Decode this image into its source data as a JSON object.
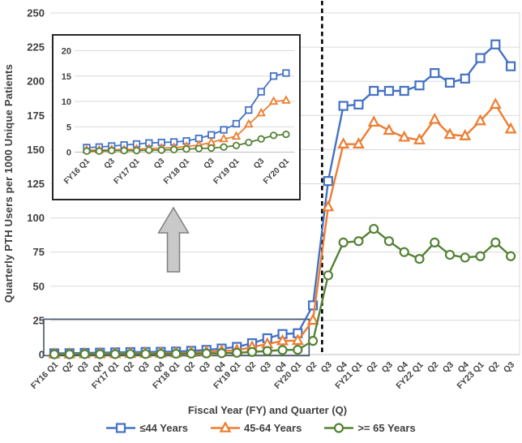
{
  "figure": {
    "background": "#FFFFFF",
    "description": "Line chart of quarterly PTH (telehealth) users per 1000 unique patients by age group, FY16 Q1 to FY23 Q3, with inset magnifying the pre-FY20 period, a vertical dashed line between FY20 Q2 and FY20 Q3, a navy box around the low pre-pandemic region and a grey arrow pointing to the inset"
  },
  "colors": {
    "series_le44": "#4472C4",
    "series_45_64": "#ED7D31",
    "series_ge65": "#548235",
    "gridline": "#D9D9D9",
    "axis_line": "#BFBFBF",
    "axis_text": "#3F3F3F",
    "dashed_line": "#000000",
    "zoom_box_border": "#44546A",
    "arrow_fill": "#C9C9C9",
    "arrow_border": "#7F7F7F"
  },
  "chart_data": [
    {
      "id": "main",
      "type": "line",
      "xlabel": "Fiscal Year (FY) and Quarter (Q)",
      "ylabel": "Quarterly PTH Users per 1000 Unique Patients",
      "ylim": [
        0,
        250
      ],
      "yticks": [
        0,
        25,
        50,
        75,
        100,
        125,
        150,
        175,
        200,
        225,
        250
      ],
      "grid": true,
      "legend_position": "bottom",
      "categories": [
        "FY16 Q1",
        "Q2",
        "Q3",
        "Q4",
        "FY17 Q1",
        "Q2",
        "Q3",
        "Q4",
        "FY18 Q1",
        "Q2",
        "Q3",
        "Q4",
        "FY19 Q1",
        "Q2",
        "Q3",
        "Q4",
        "FY20 Q1",
        "Q2",
        "Q3",
        "Q4",
        "FY21 Q1",
        "Q2",
        "Q3",
        "Q4",
        "FY22 Q1",
        "Q2",
        "Q3",
        "Q4",
        "FY23 Q1",
        "Q2",
        "Q3"
      ],
      "series": [
        {
          "name": "≤44 Years",
          "marker": "square",
          "color_key": "series_le44",
          "values": [
            0.9,
            1.0,
            1.2,
            1.4,
            1.6,
            1.8,
            1.9,
            2.0,
            2.2,
            2.7,
            3.4,
            4.4,
            5.6,
            8.3,
            11.9,
            15.0,
            15.6,
            36,
            127,
            182,
            183,
            193,
            193,
            193,
            197,
            206,
            199,
            202,
            217,
            227,
            211
          ]
        },
        {
          "name": "45-64 Years",
          "marker": "triangle",
          "color_key": "series_45_64",
          "values": [
            0.4,
            0.4,
            0.5,
            0.5,
            0.6,
            0.7,
            0.8,
            0.9,
            1.1,
            1.4,
            1.9,
            2.6,
            3.1,
            5.5,
            7.7,
            10.0,
            10.2,
            25,
            108,
            154,
            154,
            170,
            164,
            159,
            157,
            172,
            161,
            160,
            171,
            183,
            165
          ]
        },
        {
          "name": ">= 65 Years",
          "marker": "circle",
          "color_key": "series_ge65",
          "values": [
            0.2,
            0.2,
            0.3,
            0.3,
            0.3,
            0.4,
            0.4,
            0.5,
            0.6,
            0.7,
            0.8,
            1.0,
            1.3,
            1.9,
            2.6,
            3.3,
            3.5,
            10,
            58,
            82,
            83,
            92,
            83,
            75,
            70,
            82,
            73,
            71,
            72,
            82,
            72
          ]
        }
      ],
      "annotations": {
        "vertical_dashed_line": {
          "between_indices": [
            17,
            18
          ],
          "offset_fraction": 0.6,
          "meaning": "between FY20 Q2 and FY20 Q3"
        },
        "zoom_region_box": {
          "x_from_index": 0,
          "x_to_index": 16,
          "y_from": 0,
          "y_to": 25
        },
        "up_arrow": {
          "type": "block-arrow-up",
          "meaning": "points from boxed region to inset chart"
        }
      }
    },
    {
      "id": "inset",
      "type": "line",
      "ylim": [
        0,
        20
      ],
      "yticks": [
        0,
        5,
        10,
        15,
        20
      ],
      "grid": true,
      "categories": [
        "FY16 Q1",
        "Q2",
        "Q3",
        "Q4",
        "FY17 Q1",
        "Q2",
        "Q3",
        "Q4",
        "FY18 Q1",
        "Q2",
        "Q3",
        "Q4",
        "FY19 Q1",
        "Q2",
        "Q3",
        "Q4",
        "FY20 Q1"
      ],
      "xtick_positions": [
        0,
        2,
        4,
        6,
        8,
        10,
        12,
        14,
        16
      ],
      "xtick_labels": [
        "FY16 Q1",
        "Q3",
        "FY17 Q1",
        "Q3",
        "FY18 Q1",
        "Q3",
        "FY19 Q1",
        "Q3",
        "FY20 Q1"
      ],
      "series": [
        {
          "name": "≤44 Years",
          "marker": "square",
          "color_key": "series_le44",
          "values": [
            0.9,
            1.0,
            1.2,
            1.4,
            1.6,
            1.8,
            1.9,
            2.0,
            2.2,
            2.7,
            3.4,
            4.4,
            5.6,
            8.3,
            11.9,
            15.0,
            15.6
          ]
        },
        {
          "name": "45-64 Years",
          "marker": "triangle",
          "color_key": "series_45_64",
          "values": [
            0.4,
            0.4,
            0.5,
            0.5,
            0.6,
            0.7,
            0.8,
            0.9,
            1.1,
            1.4,
            1.9,
            2.6,
            3.1,
            5.5,
            7.7,
            10.0,
            10.2
          ]
        },
        {
          "name": ">= 65 Years",
          "marker": "circle",
          "color_key": "series_ge65",
          "values": [
            0.2,
            0.2,
            0.3,
            0.3,
            0.3,
            0.4,
            0.4,
            0.5,
            0.6,
            0.7,
            0.8,
            1.0,
            1.3,
            1.9,
            2.6,
            3.3,
            3.5
          ]
        }
      ]
    }
  ]
}
